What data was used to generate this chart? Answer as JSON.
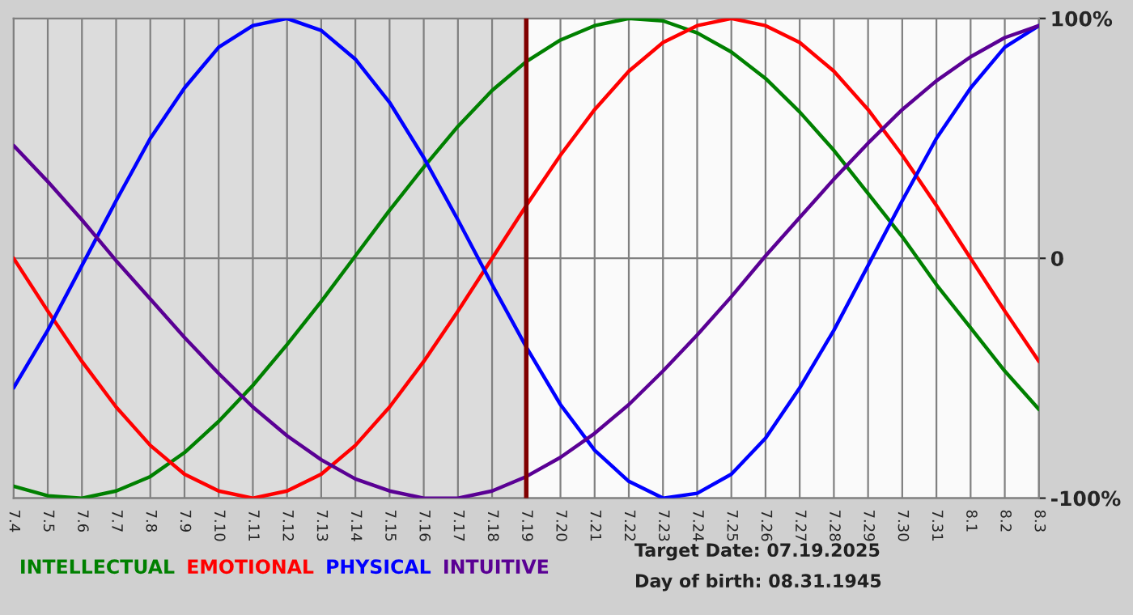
{
  "chart_data": {
    "type": "line",
    "categories": [
      "7.4",
      "7.5",
      "7.6",
      "7.7",
      "7.8",
      "7.9",
      "7.10",
      "7.11",
      "7.12",
      "7.13",
      "7.14",
      "7.15",
      "7.16",
      "7.17",
      "7.18",
      "7.19",
      "7.20",
      "7.21",
      "7.22",
      "7.23",
      "7.24",
      "7.25",
      "7.26",
      "7.27",
      "7.28",
      "7.29",
      "7.30",
      "7.31",
      "8.1",
      "8.2",
      "8.3"
    ],
    "series": [
      {
        "name": "INTELLECTUAL",
        "color": "#008000",
        "values": [
          -95,
          -99,
          -100,
          -97,
          -91,
          -81,
          -68,
          -53,
          -36,
          -18,
          1,
          20,
          38,
          55,
          70,
          82,
          91,
          97,
          100,
          99,
          94,
          86,
          75,
          61,
          45,
          27,
          9,
          -11,
          -29,
          -47,
          -63
        ]
      },
      {
        "name": "EMOTIONAL",
        "color": "#ff0000",
        "values": [
          0,
          -22,
          -43,
          -62,
          -78,
          -90,
          -97,
          -100,
          -97,
          -90,
          -78,
          -62,
          -43,
          -22,
          0,
          22,
          43,
          62,
          78,
          90,
          97,
          100,
          97,
          90,
          78,
          62,
          43,
          22,
          0,
          -22,
          -43
        ]
      },
      {
        "name": "PHYSICAL",
        "color": "#0000ff",
        "values": [
          -54,
          -30,
          -3,
          24,
          50,
          71,
          88,
          97,
          100,
          95,
          83,
          65,
          42,
          16,
          -11,
          -37,
          -61,
          -80,
          -93,
          -100,
          -98,
          -90,
          -75,
          -54,
          -30,
          -3,
          24,
          50,
          71,
          88,
          97
        ]
      },
      {
        "name": "INTUITIVE",
        "color": "#5a0094",
        "values": [
          47,
          32,
          16,
          -1,
          -17,
          -33,
          -48,
          -62,
          -74,
          -84,
          -92,
          -97,
          -100,
          -100,
          -97,
          -91,
          -83,
          -73,
          -61,
          -47,
          -32,
          -16,
          1,
          17,
          33,
          48,
          62,
          74,
          84,
          92,
          97
        ]
      }
    ],
    "ylim": [
      -100,
      100
    ],
    "yticks": [
      {
        "value": -100,
        "label": "-100%"
      },
      0,
      {
        "value": 100,
        "label": "100%"
      }
    ],
    "grid": true,
    "legend": "bottom",
    "line_style": "solid",
    "ref_lines": [
      {
        "axis": "x",
        "value": "7.19",
        "color": "#800000"
      }
    ],
    "bands": [
      {
        "axis": "x",
        "from": "7.4",
        "to": "7.19",
        "color": "#dcdcdc"
      }
    ],
    "annotations": [
      "Target Date: 07.19.2025",
      "Day of birth: 08.31.1945"
    ]
  }
}
